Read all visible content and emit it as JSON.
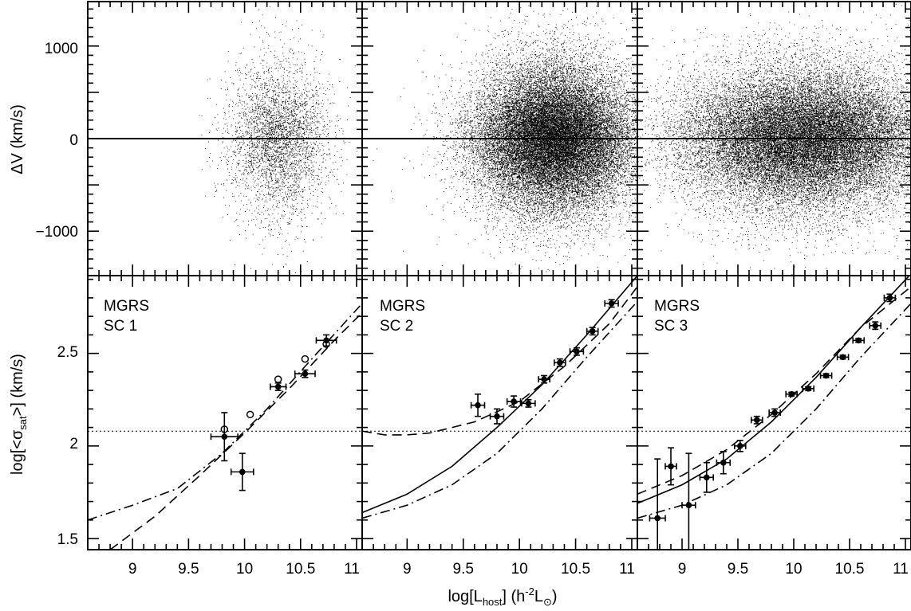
{
  "figure": {
    "xlabel": "log[L_host]   (h^-2 L_⊙)",
    "xlabel_parts": {
      "pre": "log[L",
      "sub": "host",
      "mid": "]   (h",
      "sup": "-2",
      "unit": "L",
      "unit_sub": "⊙",
      "post": ")"
    },
    "top_ylabel": "ΔV (km/s)",
    "bottom_ylabel_parts": {
      "pre": "log[<σ",
      "sub": "sat",
      "post": ">] (km/s)"
    },
    "panel_labels": [
      [
        "MGRS",
        "SC 1"
      ],
      [
        "MGRS",
        "SC 2"
      ],
      [
        "MGRS",
        "SC 3"
      ]
    ],
    "x_ticks": [
      "9",
      "9.5",
      "10",
      "10.5",
      "11"
    ],
    "top_y_ticks": [
      "1000",
      "0",
      "−1000"
    ],
    "bottom_y_ticks": [
      "2.5",
      "2",
      "1.5"
    ]
  },
  "chart_data": [
    {
      "type": "scatter",
      "panel": "top-1",
      "xlim": [
        8.6,
        11.05
      ],
      "ylim": [
        -1480,
        1480
      ],
      "y_ticks": [
        1000,
        0,
        -1000
      ],
      "reference_line_y": 0,
      "distribution": {
        "center_x": 10.3,
        "spread_x": 0.22,
        "center_y": 0,
        "spread_y": 450,
        "points": 3800
      }
    },
    {
      "type": "scatter",
      "panel": "top-2",
      "xlim": [
        8.6,
        11.05
      ],
      "ylim": [
        -1480,
        1480
      ],
      "reference_line_y": 0,
      "distribution": {
        "center_x": 10.3,
        "spread_x": 0.35,
        "center_y": 0,
        "spread_y": 420,
        "points": 30000
      }
    },
    {
      "type": "scatter",
      "panel": "top-3",
      "xlim": [
        8.6,
        11.05
      ],
      "ylim": [
        -1480,
        1480
      ],
      "reference_line_y": 0,
      "distribution": {
        "center_x": 10.1,
        "spread_x": 0.55,
        "center_y": 0,
        "spread_y": 400,
        "points": 30000
      }
    },
    {
      "type": "scatter",
      "panel": "bottom-1",
      "xlim": [
        8.6,
        11.05
      ],
      "ylim": [
        1.44,
        2.92
      ],
      "y_ticks": [
        2.5,
        2,
        1.5
      ],
      "reference_line_y": 2.08,
      "points_filled": [
        {
          "x": 9.82,
          "y": 2.05,
          "xerr": 0.12,
          "yerr": 0.13
        },
        {
          "x": 9.98,
          "y": 1.86,
          "xerr": 0.1,
          "yerr": 0.1
        },
        {
          "x": 10.3,
          "y": 2.32,
          "xerr": 0.07,
          "yerr": 0.02
        },
        {
          "x": 10.54,
          "y": 2.39,
          "xerr": 0.09,
          "yerr": 0.02
        },
        {
          "x": 10.73,
          "y": 2.57,
          "xerr": 0.09,
          "yerr": 0.03
        }
      ],
      "points_open": [
        {
          "x": 9.82,
          "y": 2.09
        },
        {
          "x": 10.05,
          "y": 2.17
        },
        {
          "x": 10.3,
          "y": 2.36
        },
        {
          "x": 10.54,
          "y": 2.47
        },
        {
          "x": 10.73,
          "y": 2.55
        }
      ],
      "lines": [
        {
          "style": "dashed",
          "x": [
            8.8,
            9.2,
            9.6,
            10.0,
            10.4,
            10.8,
            11.05
          ],
          "y": [
            1.44,
            1.62,
            1.84,
            2.07,
            2.31,
            2.57,
            2.72
          ]
        },
        {
          "style": "dashdot",
          "x": [
            8.6,
            9.0,
            9.4,
            9.8,
            10.2,
            10.6,
            11.05
          ],
          "y": [
            1.6,
            1.68,
            1.77,
            1.96,
            2.2,
            2.47,
            2.77
          ]
        }
      ]
    },
    {
      "type": "scatter",
      "panel": "bottom-2",
      "xlim": [
        8.6,
        11.05
      ],
      "ylim": [
        1.44,
        2.92
      ],
      "reference_line_y": 2.08,
      "points_filled": [
        {
          "x": 9.63,
          "y": 2.22,
          "xerr": 0.06,
          "yerr": 0.06
        },
        {
          "x": 9.8,
          "y": 2.16,
          "xerr": 0.06,
          "yerr": 0.04
        },
        {
          "x": 9.95,
          "y": 2.24,
          "xerr": 0.06,
          "yerr": 0.03
        },
        {
          "x": 10.08,
          "y": 2.23,
          "xerr": 0.06,
          "yerr": 0.02
        },
        {
          "x": 10.22,
          "y": 2.36,
          "xerr": 0.05,
          "yerr": 0.02
        },
        {
          "x": 10.36,
          "y": 2.45,
          "xerr": 0.05,
          "yerr": 0.02
        },
        {
          "x": 10.51,
          "y": 2.51,
          "xerr": 0.06,
          "yerr": 0.02
        },
        {
          "x": 10.65,
          "y": 2.62,
          "xerr": 0.05,
          "yerr": 0.02
        },
        {
          "x": 10.82,
          "y": 2.77,
          "xerr": 0.06,
          "yerr": 0.02
        }
      ],
      "points_open": [],
      "lines": [
        {
          "style": "solid",
          "x": [
            8.6,
            9.0,
            9.4,
            9.8,
            10.2,
            10.6,
            11.05
          ],
          "y": [
            1.64,
            1.74,
            1.89,
            2.1,
            2.33,
            2.6,
            2.92
          ]
        },
        {
          "style": "dashed",
          "x": [
            8.6,
            8.8,
            9.0,
            9.2,
            9.6,
            10.0,
            10.4,
            10.8,
            11.05
          ],
          "y": [
            2.08,
            2.06,
            2.06,
            2.07,
            2.13,
            2.24,
            2.43,
            2.66,
            2.86
          ]
        },
        {
          "style": "dashdot",
          "x": [
            8.6,
            9.0,
            9.4,
            9.8,
            10.2,
            10.6,
            11.05
          ],
          "y": [
            1.61,
            1.68,
            1.79,
            1.96,
            2.2,
            2.48,
            2.78
          ]
        }
      ]
    },
    {
      "type": "scatter",
      "panel": "bottom-3",
      "xlim": [
        8.6,
        11.05
      ],
      "ylim": [
        1.44,
        2.92
      ],
      "reference_line_y": 2.08,
      "points_filled": [
        {
          "x": 8.78,
          "y": 1.61,
          "xerr": 0.07,
          "yerr": 0.32
        },
        {
          "x": 8.9,
          "y": 1.89,
          "xerr": 0.05,
          "yerr": 0.1
        },
        {
          "x": 9.06,
          "y": 1.68,
          "xerr": 0.06,
          "yerr": 0.28
        },
        {
          "x": 9.22,
          "y": 1.83,
          "xerr": 0.06,
          "yerr": 0.08
        },
        {
          "x": 9.37,
          "y": 1.91,
          "xerr": 0.06,
          "yerr": 0.06
        },
        {
          "x": 9.52,
          "y": 2.0,
          "xerr": 0.05,
          "yerr": 0.03
        },
        {
          "x": 9.67,
          "y": 2.14,
          "xerr": 0.05,
          "yerr": 0.02
        },
        {
          "x": 9.83,
          "y": 2.18,
          "xerr": 0.05,
          "yerr": 0.02
        },
        {
          "x": 9.98,
          "y": 2.28,
          "xerr": 0.05,
          "yerr": 0.01
        },
        {
          "x": 10.13,
          "y": 2.31,
          "xerr": 0.05,
          "yerr": 0.01
        },
        {
          "x": 10.29,
          "y": 2.38,
          "xerr": 0.05,
          "yerr": 0.01
        },
        {
          "x": 10.44,
          "y": 2.48,
          "xerr": 0.05,
          "yerr": 0.01
        },
        {
          "x": 10.58,
          "y": 2.57,
          "xerr": 0.05,
          "yerr": 0.01
        },
        {
          "x": 10.73,
          "y": 2.65,
          "xerr": 0.05,
          "yerr": 0.02
        },
        {
          "x": 10.86,
          "y": 2.8,
          "xerr": 0.05,
          "yerr": 0.02
        }
      ],
      "points_open": [],
      "lines": [
        {
          "style": "solid",
          "x": [
            8.6,
            9.0,
            9.4,
            9.8,
            10.2,
            10.6,
            11.05
          ],
          "y": [
            1.69,
            1.79,
            1.93,
            2.13,
            2.37,
            2.64,
            2.93
          ]
        },
        {
          "style": "dashed",
          "x": [
            8.6,
            9.0,
            9.4,
            9.8,
            10.2,
            10.6,
            11.05
          ],
          "y": [
            1.74,
            1.84,
            1.98,
            2.17,
            2.39,
            2.64,
            2.86
          ]
        },
        {
          "style": "dashdot",
          "x": [
            8.6,
            9.0,
            9.4,
            9.8,
            10.2,
            10.6,
            11.05
          ],
          "y": [
            1.61,
            1.68,
            1.79,
            1.96,
            2.2,
            2.48,
            2.77
          ]
        }
      ]
    }
  ]
}
